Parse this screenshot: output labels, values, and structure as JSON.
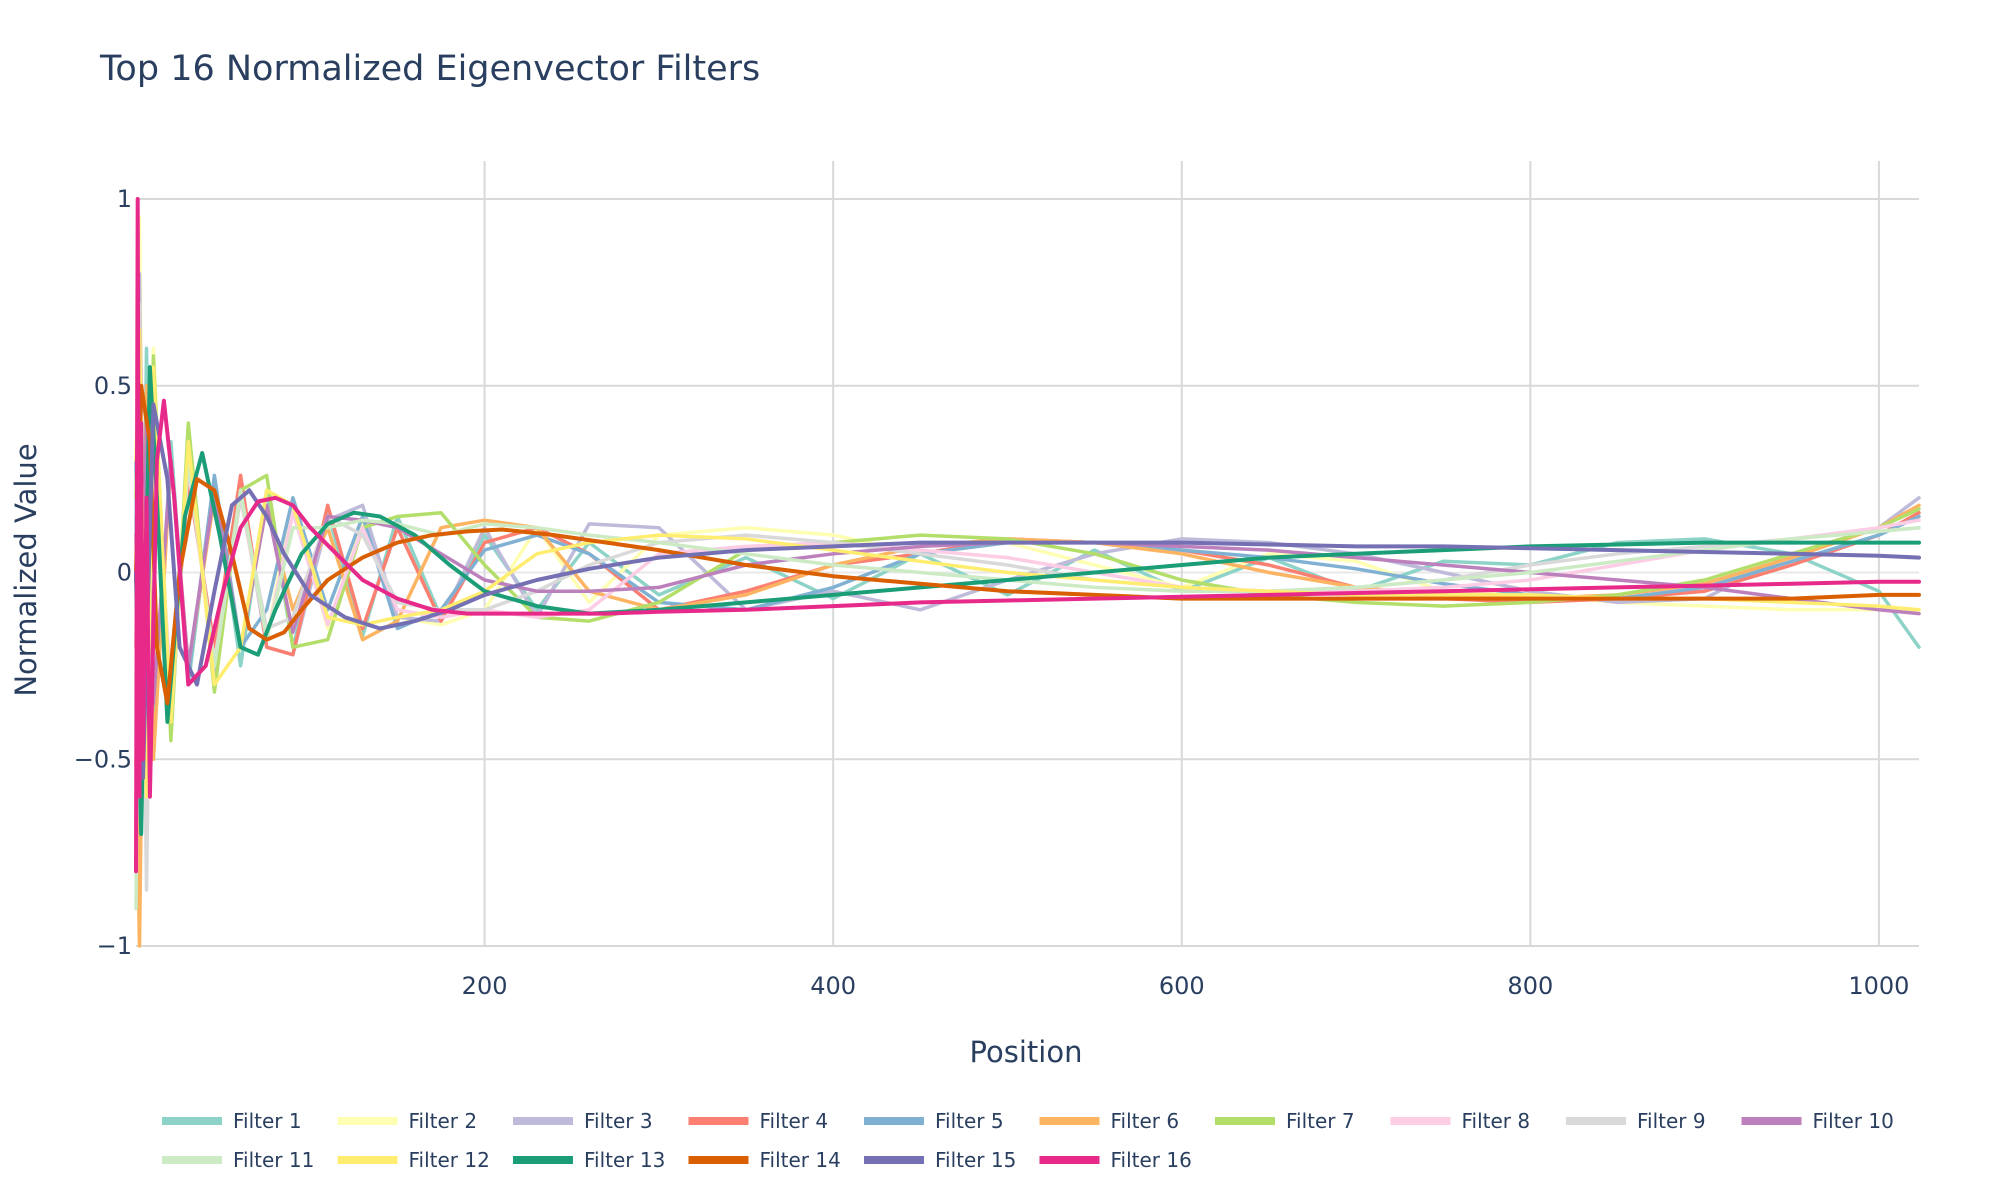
{
  "chart_data": {
    "type": "line",
    "title": "Top 16 Normalized Eigenvector Filters",
    "xlabel": "Position",
    "ylabel": "Normalized Value",
    "xlim": [
      0,
      1023
    ],
    "ylim": [
      -1,
      1
    ],
    "x_ticks": [
      200,
      400,
      600,
      800,
      1000
    ],
    "x_tick_labels": [
      "200",
      "400",
      "600",
      "800",
      "1000"
    ],
    "y_ticks": [
      -1,
      -0.5,
      0,
      0.5,
      1
    ],
    "y_tick_labels": [
      "−1",
      "−0.5",
      "0",
      "0.5",
      "1"
    ],
    "grid": true,
    "legend_position": "bottom",
    "series": [
      {
        "name": "Filter 1",
        "color": "#8dd3c7",
        "x": [
          0,
          2,
          6,
          10,
          20,
          30,
          45,
          60,
          75,
          90,
          110,
          130,
          150,
          175,
          200,
          230,
          260,
          300,
          350,
          400,
          450,
          500,
          550,
          600,
          650,
          700,
          750,
          800,
          850,
          900,
          950,
          1000,
          1023
        ],
        "values": [
          0.15,
          -0.9,
          0.6,
          -0.5,
          0.35,
          -0.3,
          0.25,
          -0.25,
          0.22,
          -0.2,
          0.16,
          -0.17,
          0.15,
          -0.12,
          0.1,
          -0.1,
          0.08,
          -0.06,
          0.04,
          -0.07,
          0.05,
          -0.06,
          0.06,
          -0.05,
          0.04,
          -0.05,
          0.03,
          0.02,
          0.08,
          0.09,
          0.05,
          -0.05,
          -0.2
        ]
      },
      {
        "name": "Filter 2",
        "color": "#ffffb3",
        "x": [
          0,
          2,
          6,
          10,
          20,
          30,
          45,
          60,
          75,
          90,
          110,
          130,
          150,
          175,
          200,
          230,
          260,
          300,
          350,
          400,
          450,
          500,
          550,
          600,
          650,
          700,
          750,
          800,
          850,
          900,
          950,
          1000,
          1023
        ],
        "values": [
          -0.3,
          0.95,
          -0.8,
          0.6,
          -0.4,
          0.3,
          -0.25,
          0.2,
          -0.18,
          0.2,
          -0.15,
          0.14,
          -0.12,
          -0.14,
          -0.1,
          0.12,
          -0.08,
          0.1,
          0.12,
          0.1,
          0.05,
          0.08,
          0.02,
          -0.04,
          0.05,
          0.03,
          -0.05,
          -0.06,
          -0.08,
          -0.09,
          -0.1,
          -0.1,
          -0.1
        ]
      },
      {
        "name": "Filter 3",
        "color": "#bebada",
        "x": [
          0,
          2,
          6,
          10,
          20,
          30,
          45,
          60,
          75,
          90,
          110,
          130,
          150,
          175,
          200,
          230,
          260,
          300,
          350,
          400,
          450,
          500,
          550,
          600,
          650,
          700,
          750,
          800,
          850,
          900,
          950,
          1000,
          1023
        ],
        "values": [
          0.1,
          0.8,
          -0.6,
          0.5,
          -0.42,
          0.36,
          -0.3,
          0.22,
          -0.2,
          -0.22,
          0.14,
          0.18,
          -0.12,
          -0.13,
          0.12,
          -0.12,
          0.13,
          0.12,
          -0.1,
          -0.05,
          -0.1,
          -0.02,
          0.05,
          0.09,
          0.08,
          0.05,
          0.0,
          -0.05,
          -0.08,
          -0.07,
          0.05,
          0.12,
          0.2
        ]
      },
      {
        "name": "Filter 4",
        "color": "#fb8072",
        "x": [
          0,
          2,
          6,
          10,
          20,
          30,
          45,
          60,
          75,
          90,
          110,
          130,
          150,
          175,
          200,
          230,
          260,
          300,
          350,
          400,
          450,
          500,
          550,
          600,
          650,
          700,
          750,
          800,
          850,
          900,
          950,
          1000,
          1023
        ],
        "values": [
          -0.2,
          0.7,
          -0.55,
          0.45,
          -0.35,
          0.25,
          -0.2,
          0.26,
          -0.2,
          -0.22,
          0.18,
          -0.15,
          0.12,
          -0.13,
          0.08,
          0.12,
          0.05,
          -0.1,
          -0.05,
          0.02,
          0.05,
          0.09,
          0.08,
          0.06,
          0.02,
          -0.04,
          -0.07,
          -0.08,
          -0.07,
          -0.05,
          0.02,
          0.1,
          0.16
        ]
      },
      {
        "name": "Filter 5",
        "color": "#80b1d3",
        "x": [
          0,
          2,
          6,
          10,
          20,
          30,
          45,
          60,
          75,
          90,
          110,
          130,
          150,
          175,
          200,
          230,
          260,
          300,
          350,
          400,
          450,
          500,
          550,
          600,
          650,
          700,
          750,
          800,
          850,
          900,
          950,
          1000,
          1023
        ],
        "values": [
          0.3,
          -0.7,
          0.5,
          -0.45,
          0.3,
          -0.28,
          0.26,
          -0.2,
          -0.1,
          0.2,
          -0.1,
          0.15,
          -0.15,
          -0.1,
          0.06,
          0.1,
          0.05,
          -0.08,
          -0.1,
          -0.04,
          0.05,
          0.08,
          0.08,
          0.06,
          0.04,
          0.01,
          -0.03,
          -0.06,
          -0.07,
          -0.04,
          0.03,
          0.1,
          0.15
        ]
      },
      {
        "name": "Filter 6",
        "color": "#fdb462",
        "x": [
          0,
          2,
          6,
          10,
          20,
          30,
          45,
          60,
          75,
          90,
          110,
          130,
          150,
          175,
          200,
          230,
          260,
          300,
          350,
          400,
          450,
          500,
          550,
          600,
          650,
          700,
          750,
          800,
          850,
          900,
          950,
          1000,
          1023
        ],
        "values": [
          -0.5,
          -1.0,
          0.5,
          -0.5,
          0.3,
          -0.25,
          0.2,
          -0.2,
          0.18,
          -0.1,
          0.12,
          -0.18,
          -0.13,
          0.12,
          0.14,
          0.12,
          -0.05,
          -0.1,
          -0.06,
          0.02,
          0.07,
          0.09,
          0.08,
          0.05,
          0.0,
          -0.04,
          -0.06,
          -0.07,
          -0.06,
          -0.03,
          0.04,
          0.12,
          0.18
        ]
      },
      {
        "name": "Filter 7",
        "color": "#b3de69",
        "x": [
          0,
          2,
          6,
          10,
          20,
          30,
          45,
          60,
          75,
          90,
          110,
          130,
          150,
          175,
          200,
          230,
          260,
          300,
          350,
          400,
          450,
          500,
          550,
          600,
          650,
          700,
          750,
          800,
          850,
          900,
          950,
          1000,
          1023
        ],
        "values": [
          0.2,
          0.6,
          -0.5,
          0.58,
          -0.45,
          0.4,
          -0.32,
          0.22,
          0.26,
          -0.2,
          -0.18,
          0.12,
          0.15,
          0.16,
          0.02,
          -0.12,
          -0.13,
          -0.08,
          0.06,
          0.08,
          0.1,
          0.09,
          0.05,
          -0.02,
          -0.06,
          -0.08,
          -0.09,
          -0.08,
          -0.06,
          -0.02,
          0.05,
          0.12,
          0.17
        ]
      },
      {
        "name": "Filter 8",
        "color": "#fccde5",
        "x": [
          0,
          2,
          6,
          10,
          20,
          30,
          45,
          60,
          75,
          90,
          110,
          130,
          150,
          175,
          200,
          230,
          260,
          300,
          350,
          400,
          450,
          500,
          550,
          600,
          650,
          700,
          750,
          800,
          850,
          900,
          950,
          1000,
          1023
        ],
        "values": [
          -0.1,
          0.5,
          -0.4,
          0.35,
          -0.3,
          0.28,
          -0.24,
          0.2,
          -0.18,
          0.16,
          -0.14,
          0.12,
          -0.1,
          -0.12,
          -0.1,
          -0.12,
          -0.1,
          0.05,
          0.07,
          0.08,
          0.06,
          0.04,
          0.0,
          -0.04,
          -0.05,
          -0.05,
          -0.04,
          -0.02,
          0.02,
          0.06,
          0.09,
          0.12,
          0.14
        ]
      },
      {
        "name": "Filter 9",
        "color": "#d9d9d9",
        "x": [
          0,
          2,
          6,
          10,
          20,
          30,
          45,
          60,
          75,
          90,
          110,
          130,
          150,
          175,
          200,
          230,
          260,
          300,
          350,
          400,
          450,
          500,
          550,
          600,
          650,
          700,
          750,
          800,
          850,
          900,
          950,
          1000,
          1023
        ],
        "values": [
          0.0,
          0.72,
          -0.85,
          0.5,
          -0.4,
          0.3,
          -0.25,
          0.2,
          -0.15,
          -0.12,
          0.15,
          0.1,
          -0.08,
          -0.1,
          -0.1,
          -0.05,
          0.02,
          0.08,
          0.1,
          0.08,
          0.05,
          0.02,
          -0.02,
          -0.04,
          -0.05,
          -0.04,
          -0.02,
          0.02,
          0.05,
          0.07,
          0.09,
          0.11,
          0.12
        ]
      },
      {
        "name": "Filter 10",
        "color": "#bc80bd",
        "x": [
          0,
          2,
          6,
          10,
          20,
          30,
          45,
          60,
          75,
          90,
          110,
          130,
          150,
          175,
          200,
          230,
          260,
          300,
          350,
          400,
          450,
          500,
          550,
          600,
          650,
          700,
          750,
          800,
          850,
          900,
          950,
          1000,
          1023
        ],
        "values": [
          0.1,
          -0.5,
          0.4,
          -0.35,
          0.3,
          -0.25,
          0.22,
          -0.2,
          0.18,
          -0.16,
          0.15,
          0.14,
          0.12,
          0.05,
          -0.02,
          -0.05,
          -0.05,
          -0.04,
          0.02,
          0.05,
          0.07,
          0.08,
          0.08,
          0.07,
          0.06,
          0.04,
          0.02,
          0.0,
          -0.02,
          -0.04,
          -0.07,
          -0.1,
          -0.11
        ]
      },
      {
        "name": "Filter 11",
        "color": "#ccebc5",
        "x": [
          0,
          2,
          6,
          10,
          20,
          30,
          45,
          60,
          75,
          90,
          110,
          130,
          150,
          175,
          200,
          230,
          260,
          300,
          350,
          400,
          450,
          500,
          550,
          600,
          650,
          700,
          750,
          800,
          850,
          900,
          950,
          1000,
          1023
        ],
        "values": [
          -0.9,
          0.6,
          -0.5,
          0.4,
          -0.35,
          0.3,
          -0.25,
          0.22,
          -0.18,
          0.12,
          0.12,
          0.14,
          0.13,
          0.1,
          0.13,
          0.12,
          0.1,
          0.08,
          0.05,
          0.02,
          0.0,
          -0.02,
          -0.04,
          -0.05,
          -0.05,
          -0.04,
          -0.02,
          0.0,
          0.03,
          0.06,
          0.09,
          0.11,
          0.12
        ]
      },
      {
        "name": "Filter 12",
        "color": "#ffed6f",
        "x": [
          0,
          2,
          6,
          10,
          20,
          30,
          45,
          60,
          75,
          90,
          110,
          130,
          150,
          175,
          200,
          230,
          260,
          300,
          350,
          400,
          450,
          500,
          550,
          600,
          650,
          700,
          750,
          800,
          850,
          900,
          950,
          1000,
          1023
        ],
        "values": [
          0.3,
          0.65,
          -0.6,
          0.55,
          -0.4,
          0.35,
          -0.3,
          -0.2,
          0.22,
          0.18,
          -0.12,
          -0.14,
          -0.12,
          -0.1,
          -0.05,
          0.05,
          0.08,
          0.1,
          0.09,
          0.06,
          0.03,
          0.0,
          -0.02,
          -0.04,
          -0.05,
          -0.06,
          -0.06,
          -0.06,
          -0.07,
          -0.07,
          -0.08,
          -0.09,
          -0.1
        ]
      },
      {
        "name": "Filter 13",
        "color": "#1b9e77",
        "x": [
          0,
          3,
          8,
          12,
          18,
          28,
          38,
          48,
          60,
          70,
          80,
          95,
          110,
          125,
          140,
          160,
          180,
          200,
          230,
          260,
          300,
          350,
          400,
          450,
          500,
          550,
          600,
          650,
          700,
          750,
          800,
          850,
          900,
          950,
          1000,
          1023
        ],
        "values": [
          0.0,
          -0.7,
          0.55,
          0.2,
          -0.4,
          0.15,
          0.32,
          0.1,
          -0.2,
          -0.22,
          -0.1,
          0.05,
          0.13,
          0.16,
          0.15,
          0.1,
          0.02,
          -0.05,
          -0.09,
          -0.11,
          -0.1,
          -0.08,
          -0.06,
          -0.04,
          -0.02,
          0.0,
          0.02,
          0.04,
          0.05,
          0.06,
          0.07,
          0.075,
          0.08,
          0.08,
          0.08,
          0.08
        ]
      },
      {
        "name": "Filter 14",
        "color": "#d95f02",
        "x": [
          0,
          3,
          8,
          12,
          18,
          25,
          35,
          45,
          55,
          65,
          75,
          85,
          95,
          110,
          130,
          150,
          170,
          190,
          210,
          240,
          270,
          300,
          350,
          400,
          450,
          500,
          550,
          600,
          650,
          700,
          750,
          800,
          850,
          900,
          950,
          1000,
          1023
        ],
        "values": [
          0.0,
          0.5,
          0.35,
          -0.2,
          -0.35,
          0.0,
          0.25,
          0.22,
          0.05,
          -0.15,
          -0.18,
          -0.16,
          -0.1,
          -0.02,
          0.04,
          0.08,
          0.1,
          0.11,
          0.115,
          0.1,
          0.08,
          0.06,
          0.02,
          -0.01,
          -0.03,
          -0.05,
          -0.06,
          -0.07,
          -0.07,
          -0.07,
          -0.07,
          -0.07,
          -0.07,
          -0.07,
          -0.07,
          -0.06,
          -0.06
        ]
      },
      {
        "name": "Filter 15",
        "color": "#7570b3",
        "x": [
          0,
          4,
          10,
          18,
          25,
          35,
          45,
          55,
          65,
          75,
          85,
          100,
          120,
          140,
          160,
          180,
          200,
          230,
          260,
          300,
          350,
          400,
          450,
          500,
          550,
          600,
          650,
          700,
          750,
          800,
          850,
          900,
          950,
          1000,
          1023
        ],
        "values": [
          0.0,
          -0.55,
          0.45,
          0.25,
          -0.2,
          -0.3,
          -0.05,
          0.18,
          0.22,
          0.15,
          0.05,
          -0.06,
          -0.12,
          -0.15,
          -0.13,
          -0.1,
          -0.06,
          -0.02,
          0.01,
          0.04,
          0.06,
          0.07,
          0.08,
          0.08,
          0.08,
          0.08,
          0.075,
          0.07,
          0.07,
          0.065,
          0.06,
          0.055,
          0.05,
          0.045,
          0.04
        ]
      },
      {
        "name": "Filter 16",
        "color": "#e7298a",
        "x": [
          0,
          1,
          2,
          3,
          4,
          6,
          8,
          12,
          16,
          22,
          30,
          40,
          50,
          60,
          70,
          80,
          90,
          100,
          115,
          130,
          150,
          170,
          190,
          210,
          240,
          270,
          300,
          350,
          400,
          450,
          500,
          550,
          600,
          650,
          700,
          750,
          800,
          850,
          900,
          950,
          1000,
          1023
        ],
        "values": [
          -0.8,
          1.0,
          -0.6,
          0.4,
          -0.5,
          0.2,
          -0.6,
          0.3,
          0.46,
          0.2,
          -0.3,
          -0.25,
          -0.05,
          0.12,
          0.19,
          0.2,
          0.18,
          0.12,
          0.05,
          -0.02,
          -0.07,
          -0.1,
          -0.11,
          -0.11,
          -0.11,
          -0.11,
          -0.105,
          -0.1,
          -0.09,
          -0.08,
          -0.075,
          -0.07,
          -0.065,
          -0.06,
          -0.055,
          -0.05,
          -0.045,
          -0.04,
          -0.035,
          -0.03,
          -0.025,
          -0.025
        ]
      }
    ]
  }
}
